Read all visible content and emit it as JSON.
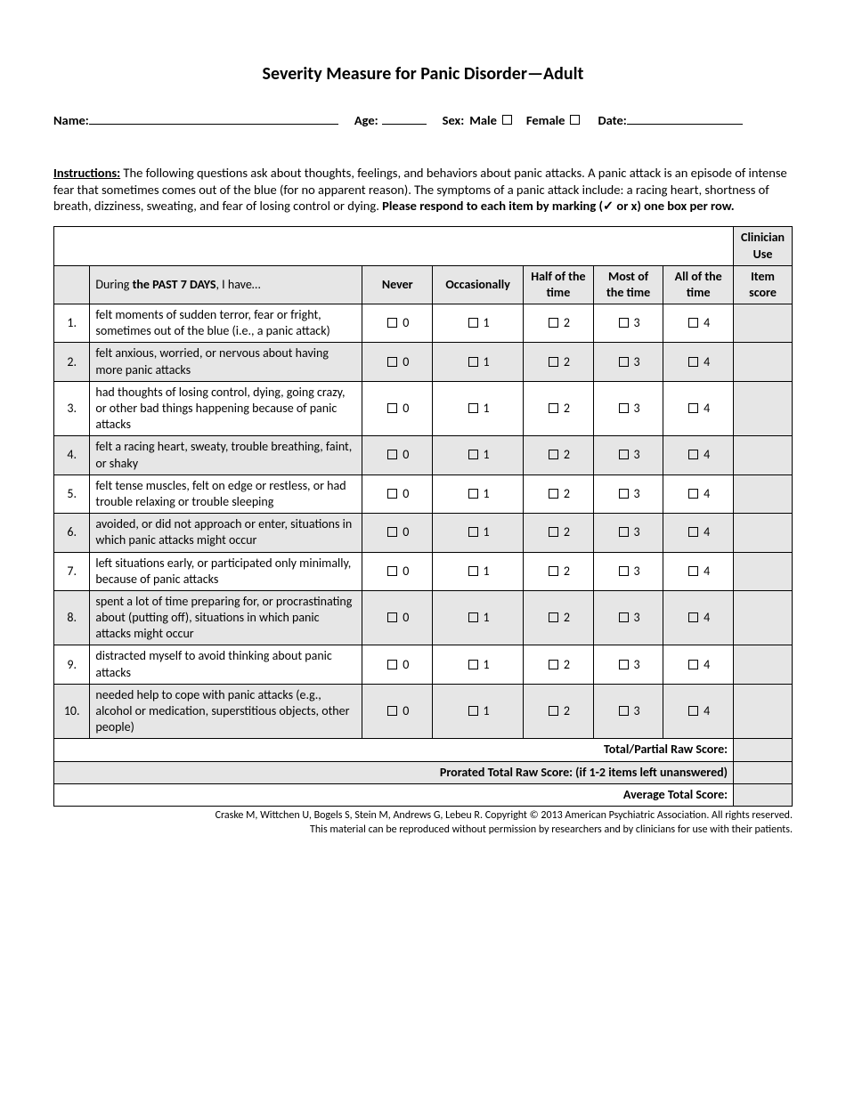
{
  "title": "Severity Measure for Panic Disorder—Adult",
  "demographics": {
    "name_label": "Name:",
    "age_label": "Age:",
    "sex_label": "Sex:",
    "male_label": "Male",
    "female_label": "Female",
    "date_label": "Date:"
  },
  "instructions": {
    "lead": "Instructions:",
    "body_before": " The following questions ask about thoughts, feelings, and behaviors about panic attacks. A panic attack is an episode of intense fear that sometimes comes out of the blue (for no apparent reason). The symptoms of a panic attack include: a racing heart, shortness of breath, dizziness, sweating, and fear of losing control or dying. ",
    "bold_tail_a": "Please respond to each item by marking (",
    "bold_tail_b": " or x) one box per row."
  },
  "table": {
    "clinician_header": "Clinician Use",
    "prompt_prefix": "During ",
    "prompt_bold": "the PAST 7 DAYS",
    "prompt_suffix": ", I have…",
    "columns": [
      "Never",
      "Occasionally",
      "Half of the time",
      "Most of the time",
      "All of the time"
    ],
    "score_header": "Item score",
    "option_values": [
      "0",
      "1",
      "2",
      "3",
      "4"
    ],
    "rows": [
      {
        "n": "1.",
        "q": "felt moments of sudden terror, fear or fright, sometimes out of the blue (i.e., a panic attack)"
      },
      {
        "n": "2.",
        "q": "felt anxious, worried, or nervous about having more panic attacks"
      },
      {
        "n": "3.",
        "q": "had thoughts of losing control, dying, going crazy, or other bad things happening because of panic attacks"
      },
      {
        "n": "4.",
        "q": "felt a racing heart, sweaty, trouble breathing, faint, or shaky"
      },
      {
        "n": "5.",
        "q": "felt tense muscles, felt on edge or restless, or had trouble relaxing or trouble sleeping"
      },
      {
        "n": "6.",
        "q": "avoided, or did not approach or enter, situations in which panic attacks might occur"
      },
      {
        "n": "7.",
        "q": "left situations early, or participated only minimally, because of panic attacks"
      },
      {
        "n": "8.",
        "q": "spent a lot of time preparing for, or procrastinating about (putting off), situations in which panic attacks might occur"
      },
      {
        "n": "9.",
        "q": "distracted myself to avoid thinking about panic attacks"
      },
      {
        "n": "10.",
        "q": "needed help to cope with panic attacks (e.g., alcohol or medication, superstitious objects,  other people)"
      }
    ],
    "footers": [
      "Total/Partial Raw Score:",
      "Prorated Total Raw Score: (if 1-2 items left unanswered)",
      "Average Total Score:"
    ]
  },
  "credits": {
    "line1_a": "Craske M, Wittchen U, Bogels S, Stein ",
    "line1_b": "M, Andrews G, Lebeu R. ",
    "line1_c": "Copyright © 2013 American Psychiatric Association. All rights reserved.",
    "line2": "This material can be reproduced without permission by researchers and by clinicians for use with their patients."
  },
  "colors": {
    "shade": "#e6e6e6",
    "text": "#000000",
    "background": "#ffffff"
  }
}
